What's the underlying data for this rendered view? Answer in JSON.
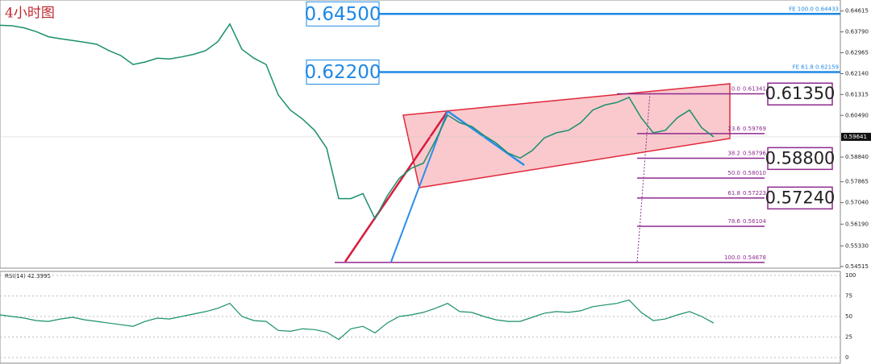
{
  "chart_data": {
    "type": "line",
    "title": "4小时图",
    "color": "#1a8f6e",
    "values": [
      0.6405,
      0.6403,
      0.6395,
      0.638,
      0.636,
      0.6352,
      0.6345,
      0.6338,
      0.633,
      0.6305,
      0.6285,
      0.625,
      0.626,
      0.6275,
      0.6272,
      0.628,
      0.629,
      0.6305,
      0.634,
      0.641,
      0.631,
      0.6275,
      0.625,
      0.613,
      0.607,
      0.6035,
      0.599,
      0.592,
      0.572,
      0.572,
      0.574,
      0.564,
      0.573,
      0.58,
      0.584,
      0.586,
      0.595,
      0.605,
      0.602,
      0.6005,
      0.597,
      0.594,
      0.59,
      0.588,
      0.591,
      0.596,
      0.598,
      0.599,
      0.602,
      0.607,
      0.609,
      0.61,
      0.612,
      0.604,
      0.598,
      0.599,
      0.604,
      0.607,
      0.6,
      0.5964
    ],
    "ylim": [
      0.5445,
      0.6505
    ],
    "yticks": [
      {
        "value": 0.64615,
        "label": "0.64615"
      },
      {
        "value": 0.6379,
        "label": "0.63790"
      },
      {
        "value": 0.62965,
        "label": "0.62965"
      },
      {
        "value": 0.6214,
        "label": "0.62140"
      },
      {
        "value": 0.61315,
        "label": "0.61315"
      },
      {
        "value": 0.6049,
        "label": "0.60490"
      },
      {
        "value": 0.5884,
        "label": "0.58840"
      },
      {
        "value": 0.57865,
        "label": "0.57865"
      },
      {
        "value": 0.5704,
        "label": "0.57040"
      },
      {
        "value": 0.5619,
        "label": "0.56190"
      },
      {
        "value": 0.5533,
        "label": "0.55330"
      },
      {
        "value": 0.54515,
        "label": "0.54515"
      }
    ],
    "current_price": 0.59641,
    "levels": [
      {
        "value": 0.645,
        "label": "0.64500",
        "color": "#1e88e5",
        "note": "FE 100.0 0.64433"
      },
      {
        "value": 0.622,
        "label": "0.62200",
        "color": "#1e88e5",
        "note": "FE 61.8 0.62159"
      }
    ],
    "fib": [
      {
        "ratio": "0.0",
        "price": {
          "value": 0.61341,
          "label": "0.61341"
        }
      },
      {
        "ratio": "23.6",
        "price": {
          "value": 0.59769,
          "label": "0.59769"
        }
      },
      {
        "ratio": "38.2",
        "price": {
          "value": 0.58796,
          "label": "0.58796"
        }
      },
      {
        "ratio": "50.0",
        "price": {
          "value": 0.5801,
          "label": "0.58010"
        }
      },
      {
        "ratio": "61.8",
        "price": {
          "value": 0.57223,
          "label": "0.57223"
        }
      },
      {
        "ratio": "78.6",
        "price": {
          "value": 0.56104,
          "label": "0.56104"
        }
      },
      {
        "ratio": "100.0",
        "price": {
          "value": 0.54678,
          "label": "0.54678"
        }
      }
    ],
    "fib_color": "#8e2a8e",
    "targets": [
      {
        "value": 0.6135,
        "label": "0.61350"
      },
      {
        "value": 0.588,
        "label": "0.58800"
      },
      {
        "value": 0.5724,
        "label": "0.57240"
      }
    ],
    "rsi": {
      "label": "RSI(14) 42.3995",
      "color": "#1a8f6e",
      "ylim": [
        0,
        100
      ],
      "yticks": [
        0,
        25,
        50,
        75,
        100
      ],
      "values": [
        52,
        50,
        48,
        45,
        44,
        47,
        49,
        46,
        44,
        42,
        40,
        38,
        44,
        48,
        47,
        50,
        53,
        56,
        60,
        66,
        50,
        45,
        44,
        33,
        32,
        35,
        34,
        31,
        22,
        35,
        38,
        30,
        42,
        50,
        52,
        55,
        60,
        66,
        56,
        55,
        50,
        46,
        44,
        44,
        49,
        54,
        56,
        55,
        57,
        62,
        64,
        66,
        70,
        55,
        45,
        47,
        52,
        56,
        50,
        42
      ]
    }
  }
}
